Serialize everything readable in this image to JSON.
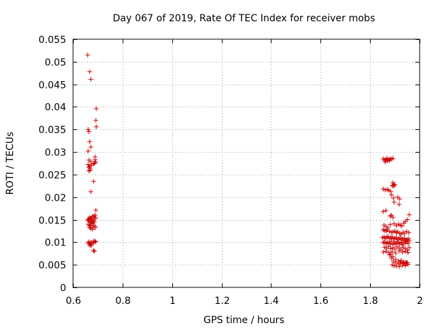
{
  "chart_data": {
    "type": "scatter",
    "title": "Day 067 of 2019, Rate Of TEC Index for receiver mobs",
    "xlabel": "GPS time / hours",
    "ylabel": "ROTI / TECUs",
    "xlim": [
      0.6,
      2.0
    ],
    "ylim": [
      0,
      0.055
    ],
    "grid": true,
    "marker": "+",
    "marker_color": "#cc0000",
    "xticks": [
      0.6,
      0.8,
      1.0,
      1.2,
      1.4,
      1.6,
      1.8,
      2.0
    ],
    "xtick_labels": [
      "0.6",
      "0.8",
      "1",
      "1.2",
      "1.4",
      "1.6",
      "1.8",
      "2"
    ],
    "yticks": [
      0,
      0.005,
      0.01,
      0.015,
      0.02,
      0.025,
      0.03,
      0.035,
      0.04,
      0.045,
      0.05,
      0.055
    ],
    "ytick_labels": [
      "0",
      "0.005",
      "0.01",
      "0.015",
      "0.02",
      "0.025",
      "0.03",
      "0.035",
      "0.04",
      "0.045",
      "0.05",
      "0.055"
    ],
    "series": [
      {
        "name": "ROTI",
        "x": [
          0.659,
          0.667,
          0.672,
          0.694,
          0.692,
          0.694,
          0.661,
          0.664,
          0.667,
          0.672,
          0.661,
          0.664,
          0.672,
          0.689,
          0.661,
          0.667,
          0.675,
          0.686,
          0.692,
          0.664,
          0.669,
          0.664,
          0.669,
          0.683,
          0.689,
          0.672,
          0.683,
          0.692,
          0.689,
          0.678,
          0.683,
          0.661,
          0.664,
          0.667,
          0.672,
          0.675,
          0.681,
          0.686,
          0.692,
          0.661,
          0.667,
          0.672,
          0.678,
          0.686,
          0.661,
          0.667,
          0.669,
          0.678,
          0.683,
          0.689,
          0.667,
          0.672,
          0.678,
          0.689,
          0.683,
          0.664,
          0.672,
          0.681,
          0.689,
          0.661,
          0.669,
          0.675,
          0.683,
          0.692,
          0.667,
          0.672,
          0.683,
          0.686,
          1.853,
          1.858,
          1.864,
          1.869,
          1.875,
          1.881,
          1.886,
          1.892,
          1.861,
          1.869,
          1.878,
          1.853,
          1.861,
          1.869,
          1.875,
          1.883,
          1.892,
          1.897,
          1.889,
          1.894,
          1.9,
          1.886,
          1.894,
          1.911,
          1.919,
          1.897,
          1.917,
          1.853,
          1.864,
          1.881,
          1.886,
          1.892,
          1.856,
          1.864,
          1.872,
          1.881,
          1.897,
          1.906,
          1.914,
          1.922,
          1.928,
          1.936,
          1.942,
          1.95,
          1.958,
          1.853,
          1.858,
          1.864,
          1.869,
          1.878,
          1.886,
          1.892,
          1.9,
          1.906,
          1.911,
          1.919,
          1.925,
          1.933,
          1.939,
          1.947,
          1.956,
          1.85,
          1.856,
          1.861,
          1.867,
          1.872,
          1.878,
          1.883,
          1.889,
          1.894,
          1.9,
          1.906,
          1.911,
          1.917,
          1.922,
          1.928,
          1.933,
          1.939,
          1.944,
          1.95,
          1.956,
          1.853,
          1.858,
          1.864,
          1.869,
          1.875,
          1.881,
          1.886,
          1.892,
          1.897,
          1.903,
          1.908,
          1.914,
          1.919,
          1.925,
          1.931,
          1.936,
          1.942,
          1.947,
          1.953,
          1.958,
          1.858,
          1.867,
          1.875,
          1.883,
          1.892,
          1.9,
          1.908,
          1.917,
          1.925,
          1.933,
          1.942,
          1.95,
          1.958,
          1.853,
          1.864,
          1.875,
          1.889,
          1.903,
          1.917,
          1.931,
          1.942,
          1.953,
          1.883,
          1.892,
          1.903,
          1.914,
          1.925,
          1.936,
          1.947,
          1.878,
          1.886,
          1.894,
          1.903,
          1.914,
          1.925,
          1.939,
          1.95,
          1.889,
          1.897,
          1.906,
          1.919,
          1.931,
          1.942,
          1.953,
          1.922,
          1.933,
          1.944
        ],
        "y": [
          0.0515,
          0.0478,
          0.0461,
          0.0396,
          0.037,
          0.0356,
          0.035,
          0.0345,
          0.0323,
          0.0311,
          0.0302,
          0.0282,
          0.0279,
          0.0289,
          0.0272,
          0.0269,
          0.0271,
          0.0275,
          0.0277,
          0.0266,
          0.0263,
          0.0258,
          0.026,
          0.0274,
          0.0283,
          0.0212,
          0.0235,
          0.0171,
          0.016,
          0.0157,
          0.0158,
          0.015,
          0.0152,
          0.0155,
          0.0153,
          0.0149,
          0.0147,
          0.0151,
          0.0154,
          0.0148,
          0.0146,
          0.0144,
          0.0143,
          0.0145,
          0.014,
          0.0138,
          0.0136,
          0.0141,
          0.0137,
          0.0135,
          0.0133,
          0.0131,
          0.0129,
          0.0132,
          0.0103,
          0.0101,
          0.01,
          0.0099,
          0.0102,
          0.0098,
          0.0097,
          0.0096,
          0.0099,
          0.0101,
          0.0094,
          0.0092,
          0.0082,
          0.008,
          0.0285,
          0.0282,
          0.0284,
          0.0286,
          0.0283,
          0.0285,
          0.0284,
          0.0286,
          0.0278,
          0.028,
          0.0281,
          0.0218,
          0.0216,
          0.0217,
          0.0215,
          0.0213,
          0.0232,
          0.0228,
          0.0226,
          0.0224,
          0.0227,
          0.0205,
          0.0198,
          0.02,
          0.0196,
          0.0189,
          0.0184,
          0.0168,
          0.017,
          0.0158,
          0.016,
          0.0155,
          0.0138,
          0.0135,
          0.0132,
          0.0139,
          0.0141,
          0.0137,
          0.014,
          0.0138,
          0.0136,
          0.0142,
          0.0146,
          0.015,
          0.0161,
          0.0128,
          0.0126,
          0.0125,
          0.0127,
          0.0124,
          0.0122,
          0.0123,
          0.0125,
          0.0121,
          0.0123,
          0.012,
          0.0118,
          0.0122,
          0.0119,
          0.0124,
          0.0121,
          0.011,
          0.0112,
          0.0109,
          0.0111,
          0.0113,
          0.0108,
          0.011,
          0.0112,
          0.0107,
          0.0109,
          0.0111,
          0.0106,
          0.0108,
          0.011,
          0.0105,
          0.0107,
          0.0109,
          0.0104,
          0.0106,
          0.0108,
          0.0099,
          0.0101,
          0.0097,
          0.01,
          0.0098,
          0.0096,
          0.0102,
          0.0095,
          0.0099,
          0.0097,
          0.0101,
          0.0098,
          0.0096,
          0.01,
          0.0094,
          0.0098,
          0.0099,
          0.0102,
          0.0097,
          0.0103,
          0.0089,
          0.0087,
          0.0091,
          0.0086,
          0.0088,
          0.0085,
          0.009,
          0.0087,
          0.0084,
          0.0089,
          0.0086,
          0.0083,
          0.0088,
          0.0078,
          0.008,
          0.0077,
          0.0079,
          0.0076,
          0.0081,
          0.0078,
          0.008,
          0.0077,
          0.0073,
          0.0068,
          0.0062,
          0.0058,
          0.006,
          0.0056,
          0.0054,
          0.0072,
          0.0065,
          0.0058,
          0.0055,
          0.0052,
          0.0057,
          0.0053,
          0.0055,
          0.005,
          0.0048,
          0.0047,
          0.0046,
          0.0049,
          0.0048,
          0.0051,
          0.0054,
          0.0053,
          0.0055
        ]
      }
    ]
  }
}
